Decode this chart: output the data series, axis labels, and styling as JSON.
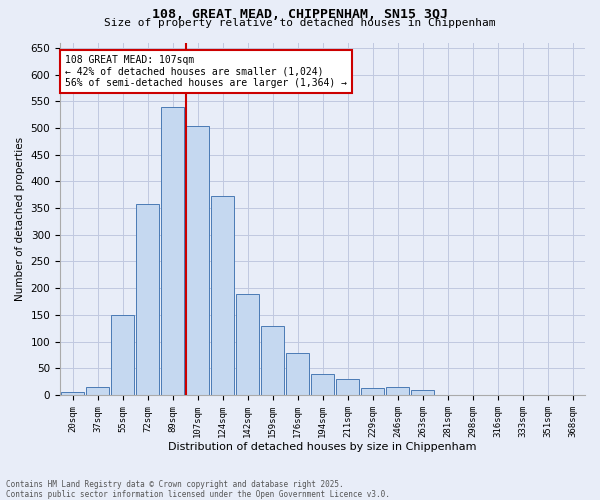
{
  "title1": "108, GREAT MEAD, CHIPPENHAM, SN15 3QJ",
  "title2": "Size of property relative to detached houses in Chippenham",
  "xlabel": "Distribution of detached houses by size in Chippenham",
  "ylabel": "Number of detached properties",
  "categories": [
    "20sqm",
    "37sqm",
    "55sqm",
    "72sqm",
    "89sqm",
    "107sqm",
    "124sqm",
    "142sqm",
    "159sqm",
    "176sqm",
    "194sqm",
    "211sqm",
    "229sqm",
    "246sqm",
    "263sqm",
    "281sqm",
    "298sqm",
    "316sqm",
    "333sqm",
    "351sqm",
    "368sqm"
  ],
  "values": [
    5,
    15,
    150,
    357,
    540,
    503,
    372,
    190,
    130,
    78,
    40,
    30,
    13,
    15,
    10,
    0,
    0,
    0,
    0,
    0,
    0
  ],
  "bar_color": "#c5d8f0",
  "bar_edge_color": "#4a7ab5",
  "marker_index": 5,
  "marker_color": "#cc0000",
  "annotation_line1": "108 GREAT MEAD: 107sqm",
  "annotation_line2": "← 42% of detached houses are smaller (1,024)",
  "annotation_line3": "56% of semi-detached houses are larger (1,364) →",
  "annotation_box_color": "#cc0000",
  "ylim": [
    0,
    660
  ],
  "yticks": [
    0,
    50,
    100,
    150,
    200,
    250,
    300,
    350,
    400,
    450,
    500,
    550,
    600,
    650
  ],
  "grid_color": "#c0c8e0",
  "bg_color": "#e8edf8",
  "footer1": "Contains HM Land Registry data © Crown copyright and database right 2025.",
  "footer2": "Contains public sector information licensed under the Open Government Licence v3.0."
}
